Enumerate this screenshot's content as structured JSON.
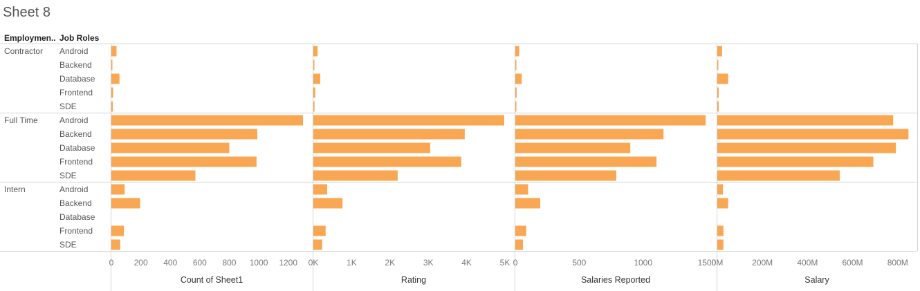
{
  "sheet": {
    "title": "Sheet 8"
  },
  "headers": {
    "employment": "Employmen..",
    "job_roles": "Job Roles"
  },
  "colors": {
    "bar": "#f9a752",
    "grid": "#d4d4d4"
  },
  "chart_data": {
    "type": "bar",
    "orientation": "horizontal",
    "legend": "none",
    "groups": [
      {
        "name": "Contractor",
        "roles": [
          "Android",
          "Backend",
          "Database",
          "Frontend",
          "SDE"
        ]
      },
      {
        "name": "Full Time",
        "roles": [
          "Android",
          "Backend",
          "Database",
          "Frontend",
          "SDE"
        ]
      },
      {
        "name": "Intern",
        "roles": [
          "Android",
          "Backend",
          "Database",
          "Frontend",
          "SDE"
        ]
      }
    ],
    "measures": [
      {
        "name": "Count of Sheet1",
        "xlim": [
          0,
          1300
        ],
        "ticks": [
          0,
          200,
          400,
          600,
          800,
          1000,
          1200
        ],
        "tick_labels": [
          "0",
          "200",
          "400",
          "600",
          "800",
          "1000",
          "1200"
        ],
        "values": [
          [
            35,
            5,
            55,
            12,
            10
          ],
          [
            1300,
            990,
            800,
            985,
            570
          ],
          [
            90,
            195,
            null,
            85,
            60
          ]
        ]
      },
      {
        "name": "Rating",
        "xlim": [
          0,
          5000
        ],
        "ticks": [
          0,
          1000,
          2000,
          3000,
          4000,
          5000
        ],
        "tick_labels": [
          "0K",
          "1K",
          "2K",
          "3K",
          "4K",
          "5K"
        ],
        "values": [
          [
            110,
            15,
            180,
            50,
            30
          ],
          [
            4980,
            3950,
            3050,
            3860,
            2200
          ],
          [
            360,
            760,
            null,
            320,
            230
          ]
        ]
      },
      {
        "name": "Salaries Reported",
        "xlim": [
          0,
          1500
        ],
        "ticks": [
          0,
          500,
          1000,
          1500
        ],
        "tick_labels": [
          "0",
          "500",
          "1000",
          "1500"
        ],
        "values": [
          [
            30,
            4,
            50,
            10,
            8
          ],
          [
            1490,
            1160,
            900,
            1105,
            790
          ],
          [
            100,
            195,
            null,
            85,
            60
          ]
        ]
      },
      {
        "name": "Salary",
        "xlim": [
          0,
          850000000
        ],
        "ticks": [
          0,
          200000000,
          400000000,
          600000000,
          800000000
        ],
        "tick_labels": [
          "0M",
          "200M",
          "400M",
          "600M",
          "800M"
        ],
        "values": [
          [
            21000000,
            4000000,
            48000000,
            6000000,
            6000000
          ],
          [
            780000000,
            848000000,
            792000000,
            692000000,
            543000000
          ],
          [
            25000000,
            48000000,
            null,
            27000000,
            27000000
          ]
        ]
      }
    ]
  }
}
